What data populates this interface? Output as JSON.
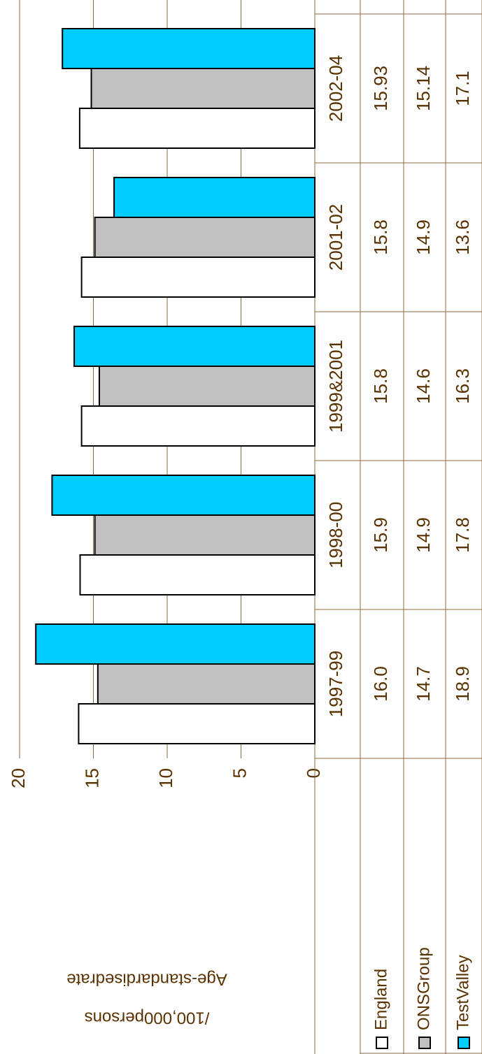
{
  "chart_data": {
    "type": "bar",
    "orientation": "horizontal-rotated",
    "y_label": [
      "Age-standardisedrate",
      "/100,000persons"
    ],
    "categories": [
      "1997-99",
      "1998-00",
      "1999&2001",
      "2001-02",
      "2002-04"
    ],
    "series": [
      {
        "name": "England",
        "color": "#ffffff",
        "values": [
          16,
          15.9,
          15.8,
          15.8,
          15.93
        ],
        "value_labels": [
          "16.0",
          "15.9",
          "15.8",
          "15.8",
          "15.93"
        ]
      },
      {
        "name": "ONSGroup",
        "color": "#c0c0c0",
        "values": [
          14.7,
          14.9,
          14.6,
          14.9,
          15.14
        ],
        "value_labels": [
          "14.7",
          "14.9",
          "14.6",
          "14.9",
          "15.14"
        ]
      },
      {
        "name": "TestValley",
        "color": "#00ccff",
        "values": [
          18.9,
          17.8,
          16.3,
          13.6,
          17.1
        ],
        "value_labels": [
          "18.9",
          "17.8",
          "16.3",
          "13.6",
          "17.1"
        ]
      }
    ],
    "ylim": [
      0,
      20
    ],
    "yticks": [
      0,
      5,
      10,
      15,
      20
    ],
    "grid": true
  }
}
